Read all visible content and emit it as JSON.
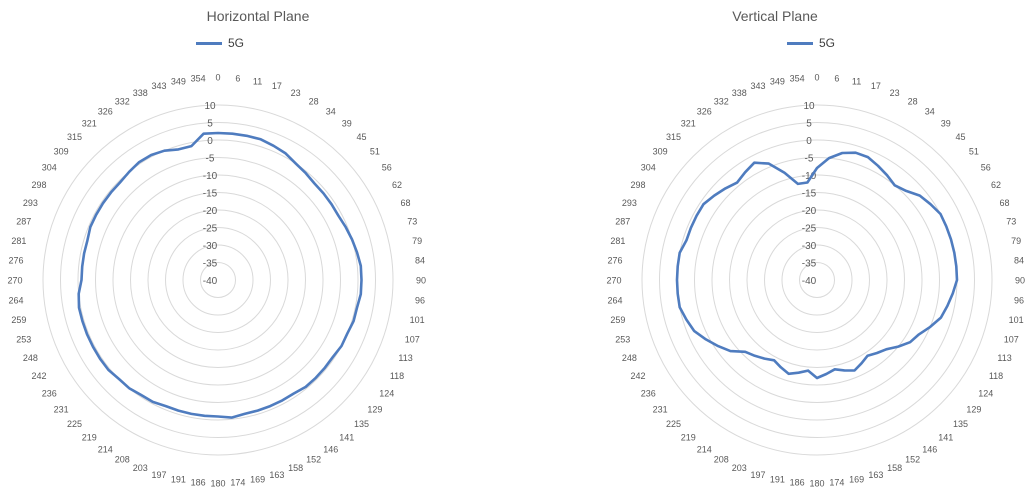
{
  "charts": [
    {
      "title": "Horizontal Plane",
      "legend": "5G"
    },
    {
      "title": "Vertical Plane",
      "legend": "5G"
    }
  ],
  "chart_data": [
    {
      "type": "polar-line",
      "title": "Horizontal Plane",
      "angle_labels": [
        "0",
        "6",
        "11",
        "17",
        "23",
        "28",
        "34",
        "39",
        "45",
        "51",
        "56",
        "62",
        "68",
        "73",
        "79",
        "84",
        "90",
        "96",
        "101",
        "107",
        "113",
        "118",
        "124",
        "129",
        "135",
        "141",
        "146",
        "152",
        "158",
        "163",
        "169",
        "174",
        "180",
        "186",
        "191",
        "197",
        "203",
        "208",
        "214",
        "219",
        "225",
        "231",
        "236",
        "242",
        "248",
        "253",
        "259",
        "264",
        "270",
        "276",
        "281",
        "287",
        "293",
        "298",
        "304",
        "309",
        "315",
        "321",
        "326",
        "332",
        "338",
        "343",
        "349",
        "354"
      ],
      "radial_ticks": [
        10,
        5,
        0,
        -5,
        -10,
        -15,
        -20,
        -25,
        -30,
        -35,
        -40
      ],
      "rlim": [
        -40,
        10
      ],
      "series": [
        {
          "name": "5G",
          "color": "#4f7cbf",
          "values": [
            2,
            2,
            2,
            2,
            1.5,
            1,
            0,
            -0.5,
            -1,
            -1,
            -1,
            -1,
            -0.5,
            0,
            0.5,
            1,
            1,
            1,
            0.5,
            0.5,
            0,
            0,
            -0.5,
            -0.5,
            -0.5,
            -0.5,
            -1,
            -1,
            -1,
            -1,
            -1,
            -0.5,
            -1,
            -1,
            -1,
            -1,
            -1,
            -0.5,
            -0.5,
            0,
            0,
            0.5,
            0.5,
            0.5,
            0.5,
            0.5,
            0.5,
            0,
            -1,
            -1,
            -1,
            -1,
            -0.5,
            -0.5,
            -0.5,
            -0.5,
            -0.5,
            0,
            0.5,
            0.5,
            0,
            -1,
            -1,
            2
          ]
        }
      ]
    },
    {
      "type": "polar-line",
      "title": "Vertical Plane",
      "angle_labels": [
        "0",
        "6",
        "11",
        "17",
        "23",
        "28",
        "34",
        "39",
        "45",
        "51",
        "56",
        "62",
        "68",
        "73",
        "79",
        "84",
        "90",
        "96",
        "101",
        "107",
        "113",
        "118",
        "124",
        "129",
        "135",
        "141",
        "146",
        "152",
        "158",
        "163",
        "169",
        "174",
        "180",
        "186",
        "191",
        "197",
        "203",
        "208",
        "214",
        "219",
        "225",
        "231",
        "236",
        "242",
        "248",
        "253",
        "259",
        "264",
        "270",
        "276",
        "281",
        "287",
        "293",
        "298",
        "304",
        "309",
        "315",
        "321",
        "326",
        "332",
        "338",
        "343",
        "349",
        "354"
      ],
      "radial_ticks": [
        10,
        5,
        0,
        -5,
        -10,
        -15,
        -20,
        -25,
        -30,
        -35,
        -40
      ],
      "rlim": [
        -40,
        10
      ],
      "series": [
        {
          "name": "5G",
          "color": "#4f7cbf",
          "values": [
            -8,
            -5,
            -3,
            -2,
            -2,
            -3,
            -4,
            -5,
            -4,
            -2,
            -1,
            0,
            0,
            0,
            0,
            0,
            0,
            -1,
            -2,
            -3,
            -5,
            -7,
            -8,
            -10,
            -12,
            -13,
            -14,
            -13,
            -12,
            -13,
            -14,
            -13,
            -12,
            -14,
            -13,
            -12,
            -13,
            -14,
            -13,
            -12,
            -11,
            -8,
            -6,
            -4,
            -2,
            -1,
            0,
            0,
            0,
            0,
            0,
            -1,
            -1,
            -1,
            -1,
            -2,
            -3,
            -4,
            -3,
            -2,
            -4,
            -8,
            -12,
            -12
          ]
        }
      ]
    }
  ]
}
